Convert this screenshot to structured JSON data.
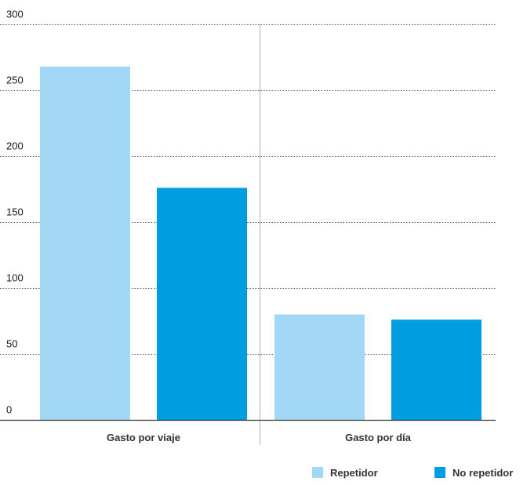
{
  "chart_data": {
    "type": "bar",
    "categories": [
      "Gasto por viaje",
      "Gasto por día"
    ],
    "series": [
      {
        "name": "Repetidor",
        "values": [
          268,
          80
        ],
        "color": "#a2d8f5"
      },
      {
        "name": "No repetidor",
        "values": [
          176,
          76
        ],
        "color": "#009ee0"
      }
    ],
    "yticks": [
      "0",
      "50",
      "100",
      "150",
      "200",
      "250",
      "300"
    ],
    "ylim": [
      0,
      300
    ],
    "grid": "dotted horizontal",
    "legend_position": "bottom-right"
  }
}
